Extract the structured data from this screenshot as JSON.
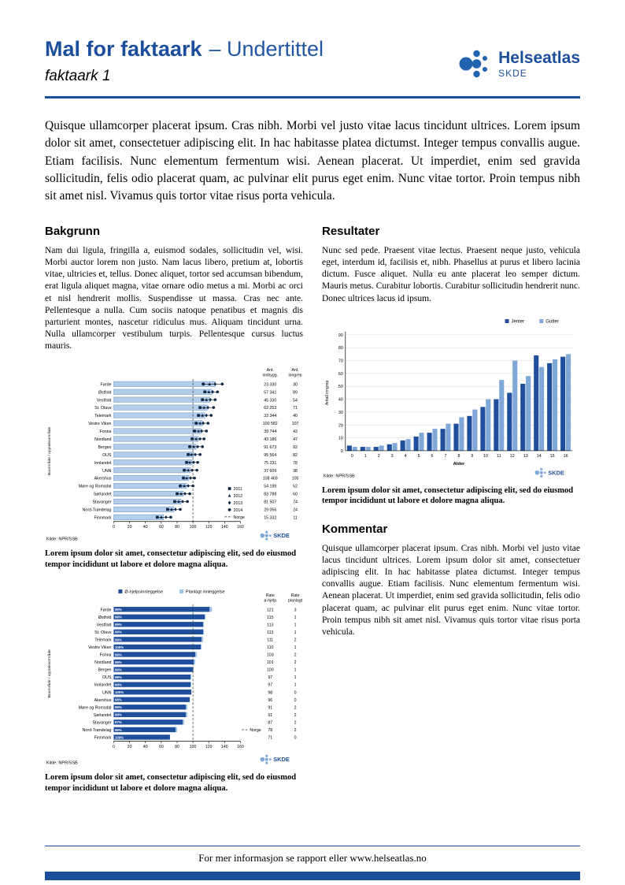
{
  "header": {
    "title": "Mal for faktaark",
    "subtitle": "– Undertittel",
    "doc_label": "faktaark 1",
    "brand": {
      "name": "Helseatlas",
      "org": "SKDE"
    }
  },
  "intro": "Quisque ullamcorper placerat ipsum. Cras nibh. Morbi vel justo vitae lacus tincidunt ultrices. Lorem ipsum dolor sit amet, consectetuer adipiscing elit. In hac habitasse platea dictumst. Integer tempus convallis augue. Etiam facilisis. Nunc elementum fermentum wisi. Aenean placerat. Ut imperdiet, enim sed gravida sollicitudin, felis odio placerat quam, ac pulvinar elit purus eget enim. Nunc vitae tortor. Proin tempus nibh sit amet nisl. Vivamus quis tortor vitae risus porta vehicula.",
  "sections": {
    "bakgrunn": {
      "heading": "Bakgrunn",
      "body": "Nam dui ligula, fringilla a, euismod sodales, sollicitudin vel, wisi. Morbi auctor lorem non justo. Nam lacus libero, pretium at, lobortis vitae, ultricies et, tellus. Donec aliquet, tortor sed accumsan bibendum, erat ligula aliquet magna, vitae ornare odio metus a mi. Morbi ac orci et nisl hendrerit mollis. Suspendisse ut massa. Cras nec ante. Pellentesque a nulla. Cum sociis natoque penatibus et magnis dis parturient montes, nascetur ridiculus mus. Aliquam tincidunt urna. Nulla ullamcorper vestibulum turpis. Pellentesque cursus luctus mauris."
    },
    "resultater": {
      "heading": "Resultater",
      "body": "Nunc sed pede. Praesent vitae lectus. Praesent neque justo, vehicula eget, interdum id, facilisis et, nibh. Phasellus at purus et libero lacinia dictum. Fusce aliquet. Nulla eu ante placerat leo semper dictum. Mauris metus. Curabitur lobortis. Curabitur sollicitudin hendrerit nunc. Donec ultrices lacus id ipsum."
    },
    "kommentar": {
      "heading": "Kommentar",
      "body": "Quisque ullamcorper placerat ipsum. Cras nibh. Morbi vel justo vitae lacus tincidunt ultrices. Lorem ipsum dolor sit amet, consectetuer adipiscing elit. In hac habitasse platea dictumst. Integer tempus convallis augue. Etiam facilisis. Nunc elementum fermentum wisi. Aenean placerat. Ut imperdiet, enim sed gravida sollicitudin, felis odio placerat quam, ac pulvinar elit purus eget enim. Nunc vitae tortor. Proin tempus nibh sit amet nisl. Vivamus quis tortor vitae risus porta vehicula."
    }
  },
  "captions": {
    "chart1": "Lorem ipsum dolor sit amet, consectetur adipiscing elit, sed do eiusmod tempor incididunt ut labore et dolore magna aliqua.",
    "chart2": "Lorem ipsum dolor sit amet, consectetur adipiscing elit, sed do eiusmod tempor incididunt ut labore et dolore magna aliqua.",
    "chart3": "Lorem ipsum dolor sit amet, consectetur adipiscing elit, sed do eiusmod tempor incididunt ut labore et dolore magna aliqua."
  },
  "footer": "For mer informasjon se rapport eller www.helseatlas.no",
  "colors": {
    "accent": "#1B4E9B",
    "dark_bar": "#1F4E9C",
    "light_bar": "#B4CDE8",
    "light_bar_border": "#6B94C4",
    "medium_bar": "#7FA8D8",
    "pale_bar": "#9DC3E6",
    "marker": "#0F2747",
    "grid": "#D9D9D9"
  },
  "chart_data": [
    {
      "type": "bar",
      "orientation": "horizontal",
      "ylabel": "Boområde / opptaksområde",
      "xlim": [
        0,
        160
      ],
      "xticks": [
        0,
        20,
        40,
        60,
        80,
        100,
        120,
        140,
        160
      ],
      "reference_line": {
        "value": 100,
        "label": "Norge"
      },
      "legend_years": [
        "2011",
        "2012",
        "2013",
        "2014"
      ],
      "col_headers": [
        [
          "Ant.",
          "innbygg."
        ],
        [
          "Ant.",
          "inngrep"
        ]
      ],
      "source": "Kilde: NPR/SSB",
      "rows": [
        {
          "label": "Førde",
          "rate": 128,
          "markers": [
            113,
            121,
            128,
            137
          ],
          "innbygg": "23 330",
          "inngrep": "30"
        },
        {
          "label": "Østfold",
          "rate": 124,
          "markers": [
            115,
            120,
            125,
            131
          ],
          "innbygg": "57 341",
          "inngrep": "89"
        },
        {
          "label": "Vestfold",
          "rate": 121,
          "markers": [
            112,
            117,
            122,
            128
          ],
          "innbygg": "45 330",
          "inngrep": "54"
        },
        {
          "label": "St. Olavs",
          "rate": 118,
          "markers": [
            109,
            114,
            119,
            126
          ],
          "innbygg": "62 253",
          "inngrep": "71"
        },
        {
          "label": "Telemark",
          "rate": 115,
          "markers": [
            107,
            112,
            117,
            123
          ],
          "innbygg": "33 344",
          "inngrep": "40"
        },
        {
          "label": "Vestre Viken",
          "rate": 112,
          "markers": [
            104,
            109,
            113,
            119
          ],
          "innbygg": "100 582",
          "inngrep": "107"
        },
        {
          "label": "Fonna",
          "rate": 110,
          "markers": [
            102,
            107,
            111,
            117
          ],
          "innbygg": "39 744",
          "inngrep": "43"
        },
        {
          "label": "Nordland",
          "rate": 107,
          "markers": [
            99,
            104,
            109,
            114
          ],
          "innbygg": "43 186",
          "inngrep": "47"
        },
        {
          "label": "Bergen",
          "rate": 104,
          "markers": [
            96,
            101,
            106,
            112
          ],
          "innbygg": "91 673",
          "inngrep": "92"
        },
        {
          "label": "OUS",
          "rate": 101,
          "markers": [
            94,
            98,
            103,
            109
          ],
          "innbygg": "95 564",
          "inngrep": "82"
        },
        {
          "label": "Innlandet",
          "rate": 99,
          "markers": [
            92,
            96,
            101,
            106
          ],
          "innbygg": "75 231",
          "inngrep": "78"
        },
        {
          "label": "UNN",
          "rate": 97,
          "markers": [
            89,
            94,
            99,
            105
          ],
          "innbygg": "37 609",
          "inngrep": "38"
        },
        {
          "label": "Akershus",
          "rate": 95,
          "markers": [
            88,
            92,
            97,
            102
          ],
          "innbygg": "108 469",
          "inngrep": "105"
        },
        {
          "label": "Møre og Romsdal",
          "rate": 92,
          "markers": [
            84,
            89,
            94,
            100
          ],
          "innbygg": "54 199",
          "inngrep": "52"
        },
        {
          "label": "Sørlandet",
          "rate": 88,
          "markers": [
            80,
            85,
            90,
            96
          ],
          "innbygg": "83 788",
          "inngrep": "60"
        },
        {
          "label": "Stavanger",
          "rate": 85,
          "markers": [
            77,
            82,
            87,
            93
          ],
          "innbygg": "81 507",
          "inngrep": "74"
        },
        {
          "label": "Nord-Trøndelag",
          "rate": 76,
          "markers": [
            68,
            73,
            78,
            84
          ],
          "innbygg": "29 056",
          "inngrep": "24"
        },
        {
          "label": "Finnmark",
          "rate": 63,
          "markers": [
            55,
            60,
            66,
            72
          ],
          "innbygg": "15 332",
          "inngrep": "11"
        }
      ]
    },
    {
      "type": "bar",
      "orientation": "vertical",
      "xlabel": "Alder",
      "ylabel": "Antall inngrep",
      "ylim": [
        0,
        90
      ],
      "yticks": [
        0,
        10,
        20,
        30,
        40,
        50,
        60,
        70,
        80,
        90
      ],
      "categories": [
        "0",
        "1",
        "2",
        "3",
        "4",
        "5",
        "6",
        "7",
        "8",
        "9",
        "10",
        "11",
        "12",
        "13",
        "14",
        "15",
        "16"
      ],
      "series": [
        {
          "name": "Jenter",
          "color": "#1F4E9C",
          "values": [
            4,
            3,
            3,
            5,
            8,
            11,
            14,
            17,
            21,
            27,
            34,
            40,
            45,
            52,
            74,
            68,
            73
          ]
        },
        {
          "name": "Gutter",
          "color": "#7FA8D8",
          "values": [
            3,
            3,
            4,
            6,
            9,
            14,
            17,
            21,
            26,
            32,
            40,
            55,
            70,
            58,
            65,
            71,
            75
          ]
        }
      ],
      "source": "Kilde: NPR/SSB"
    },
    {
      "type": "bar",
      "orientation": "horizontal-stacked",
      "ylabel": "Boområde / opptaksområde",
      "xlim": [
        0,
        160
      ],
      "xticks": [
        0,
        20,
        40,
        60,
        80,
        100,
        120,
        140,
        160
      ],
      "reference_line": {
        "value": 100,
        "label": "Norge"
      },
      "legend": [
        "Ø-hjelpsinnleggelse",
        "Planlagt innleggelse"
      ],
      "col_headers": [
        [
          "Rate",
          "ø-hjelp"
        ],
        [
          "Rate",
          "planlagt"
        ]
      ],
      "source": "Kilde: NPR/SSB",
      "rows": [
        {
          "label": "Førde",
          "pct": "99%",
          "ohjelp": 121,
          "planlagt": 3
        },
        {
          "label": "Østfold",
          "pct": "99%",
          "ohjelp": 115,
          "planlagt": 1
        },
        {
          "label": "Vestfold",
          "pct": "99%",
          "ohjelp": 113,
          "planlagt": 1
        },
        {
          "label": "St. Olavs",
          "pct": "99%",
          "ohjelp": 113,
          "planlagt": 1
        },
        {
          "label": "Telemark",
          "pct": "99%",
          "ohjelp": 111,
          "planlagt": 2
        },
        {
          "label": "Vestre Viken",
          "pct": "100%",
          "ohjelp": 110,
          "planlagt": 1
        },
        {
          "label": "Fonna",
          "pct": "99%",
          "ohjelp": 103,
          "planlagt": 2
        },
        {
          "label": "Nordland",
          "pct": "99%",
          "ohjelp": 101,
          "planlagt": 2
        },
        {
          "label": "Bergen",
          "pct": "99%",
          "ohjelp": 100,
          "planlagt": 1
        },
        {
          "label": "OUS",
          "pct": "99%",
          "ohjelp": 97,
          "planlagt": 1
        },
        {
          "label": "Innlandet",
          "pct": "99%",
          "ohjelp": 97,
          "planlagt": 1
        },
        {
          "label": "UNN",
          "pct": "100%",
          "ohjelp": 98,
          "planlagt": 0
        },
        {
          "label": "Akershus",
          "pct": "98%",
          "ohjelp": 96,
          "planlagt": 0
        },
        {
          "label": "Møre og Romsdal",
          "pct": "99%",
          "ohjelp": 91,
          "planlagt": 2
        },
        {
          "label": "Sørlandet",
          "pct": "99%",
          "ohjelp": 91,
          "planlagt": 2
        },
        {
          "label": "Stavanger",
          "pct": "97%",
          "ohjelp": 87,
          "planlagt": 2
        },
        {
          "label": "Nord-Trøndelag",
          "pct": "99%",
          "ohjelp": 78,
          "planlagt": 2
        },
        {
          "label": "Finnmark",
          "pct": "100%",
          "ohjelp": 71,
          "planlagt": 0
        }
      ]
    }
  ]
}
